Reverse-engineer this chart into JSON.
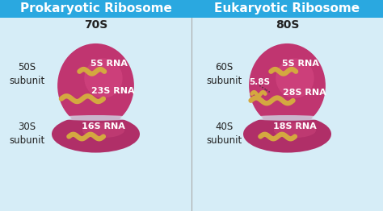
{
  "bg_color": "#d6edf7",
  "header_color": "#2aa8e0",
  "header_text_color": "#ffffff",
  "header_fontsize": 11,
  "subunit_color_top": "#c03570",
  "subunit_color_bottom": "#b02f68",
  "subunit_shadow": "#8a1f50",
  "rna_color": "#d4a840",
  "text_color_white": "#ffffff",
  "text_color_dark": "#222222",
  "left_title": "Prokaryotic Ribosome",
  "right_title": "Eukaryotic Ribosome",
  "left_sed": "70S",
  "right_sed": "80S",
  "left_large": "50S\nsubunit",
  "left_small": "30S\nsubunit",
  "right_large": "60S\nsubunit",
  "right_small": "40S\nsubunit"
}
